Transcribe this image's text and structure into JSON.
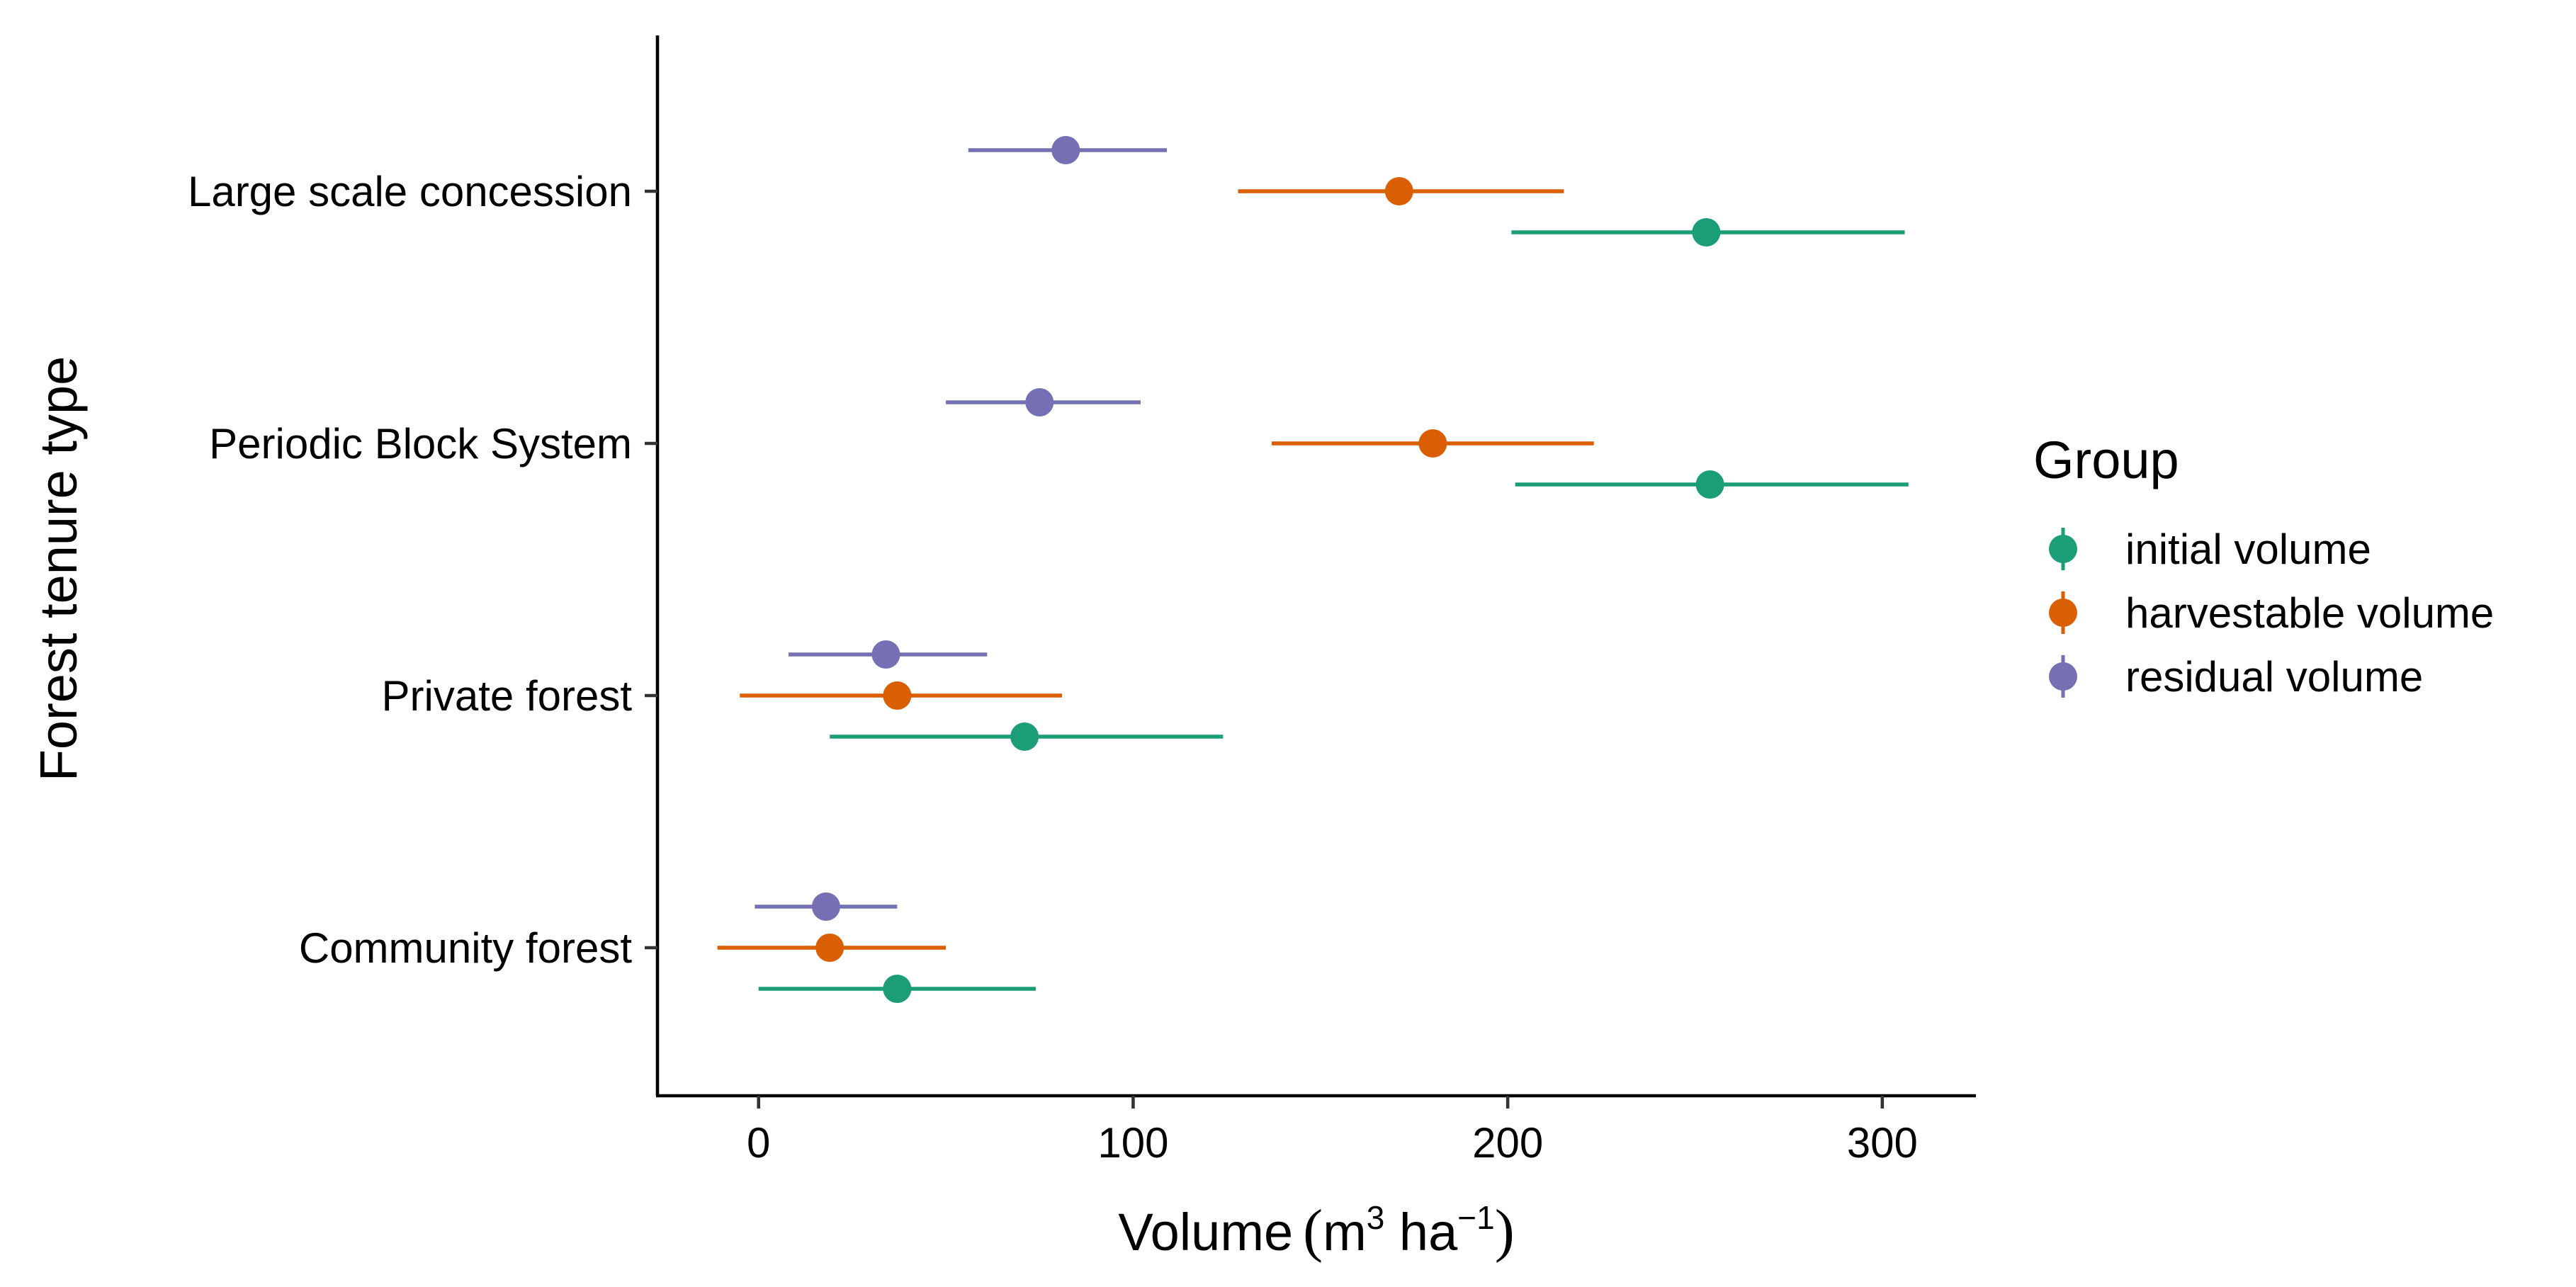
{
  "chart_data": {
    "type": "dot-errorbar",
    "title": "",
    "xlabel_main": "Volume",
    "xlabel_unit_parts": [
      "(",
      "m",
      "3",
      " ha",
      "−1",
      ")"
    ],
    "ylabel": "Forest tenure type",
    "xlim": [
      -27,
      325
    ],
    "xticks": [
      0,
      100,
      200,
      300
    ],
    "xtick_labels": [
      "0",
      "100",
      "200",
      "300"
    ],
    "grid": false,
    "categories": [
      "Large scale concession",
      "Periodic Block System",
      "Private forest",
      "Community forest"
    ],
    "legend": {
      "title": "Group",
      "position": "right"
    },
    "series": [
      {
        "name": "initial volume",
        "color": "#1B9E77",
        "mean": [
          253,
          254,
          71,
          37
        ],
        "lower": [
          201,
          202,
          19,
          0
        ],
        "upper": [
          306,
          307,
          124,
          74
        ]
      },
      {
        "name": "harvestable volume",
        "color": "#D95F02",
        "mean": [
          171,
          180,
          37,
          19
        ],
        "lower": [
          128,
          137,
          -5,
          -11
        ],
        "upper": [
          215,
          223,
          81,
          50
        ]
      },
      {
        "name": "residual volume",
        "color": "#7570B3",
        "mean": [
          82,
          75,
          34,
          18
        ],
        "lower": [
          56,
          50,
          8,
          -1
        ],
        "upper": [
          109,
          102,
          61,
          37
        ]
      }
    ]
  }
}
